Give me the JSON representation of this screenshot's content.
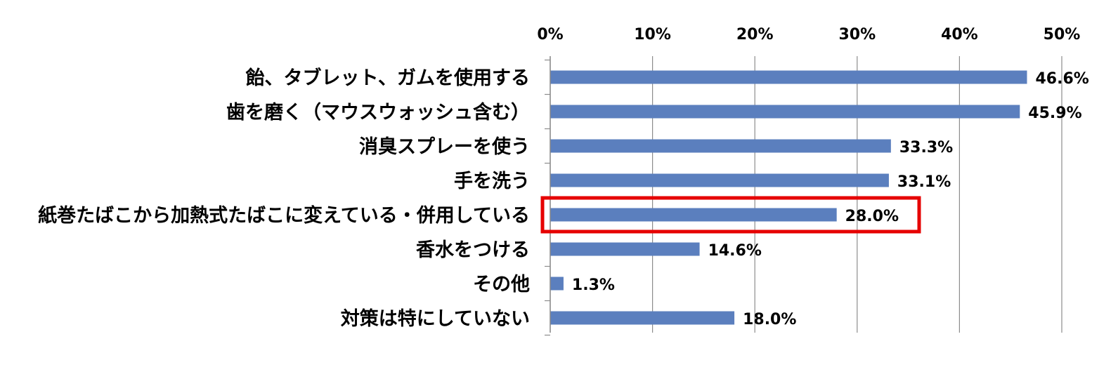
{
  "chart_data": {
    "type": "bar",
    "orientation": "horizontal",
    "title": "",
    "xlabel": "",
    "ylabel": "",
    "xlim": [
      0,
      50
    ],
    "ticks": [
      0,
      10,
      20,
      30,
      40,
      50
    ],
    "tick_labels": [
      "0%",
      "10%",
      "20%",
      "30%",
      "40%",
      "50%"
    ],
    "tick_position": "top",
    "grid": true,
    "categories": [
      "飴、タブレット、ガムを使用する",
      "歯を磨く（マウスウォッシュ含む）",
      "消臭スプレーを使う",
      "手を洗う",
      "紙巻たばこから加熱式たばこに変えている・併用している",
      "香水をつける",
      "その他",
      "対策は特にしていない"
    ],
    "values": [
      46.6,
      45.9,
      33.3,
      33.1,
      28.0,
      14.6,
      1.3,
      18.0
    ],
    "value_labels": [
      "46.6%",
      "45.9%",
      "33.3%",
      "33.1%",
      "28.0%",
      "14.6%",
      "1.3%",
      "18.0%"
    ],
    "highlighted_category_index": 4,
    "bar_color": "#5b7fbe",
    "grid_color": "#8c8c8c",
    "highlight_color": "#e60000",
    "text_color": "#000000"
  }
}
